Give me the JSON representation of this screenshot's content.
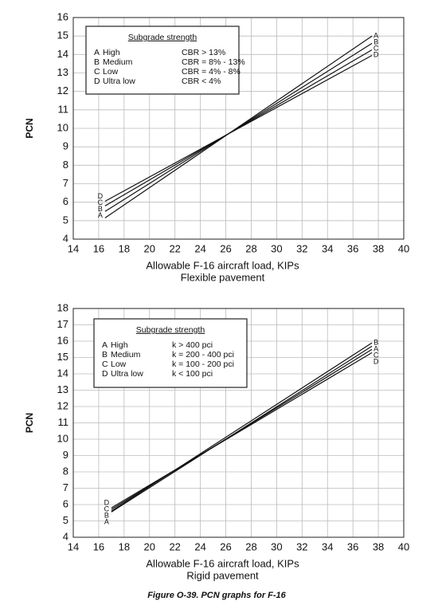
{
  "chart_data": [
    {
      "type": "line",
      "xlabel": "Allowable F-16 aircraft load, KIPs",
      "subtitle": "Flexible pavement",
      "ylabel": "PCN",
      "legend_title": "Subgrade strength",
      "xlim": [
        14,
        40
      ],
      "xticks": [
        14,
        16,
        18,
        20,
        22,
        24,
        26,
        28,
        30,
        32,
        34,
        36,
        38,
        40
      ],
      "ylim": [
        4,
        16
      ],
      "yticks": [
        4,
        5,
        6,
        7,
        8,
        9,
        10,
        11,
        12,
        13,
        14,
        15,
        16
      ],
      "grid": true,
      "x": [
        16.5,
        37.5
      ],
      "series": [
        {
          "name": "A",
          "description": "High",
          "criterion": "CBR > 13%",
          "color": "#111",
          "values": [
            5.15,
            15.0
          ]
        },
        {
          "name": "B",
          "description": "Medium",
          "criterion": "CBR = 8% - 13%",
          "color": "#111",
          "values": [
            5.5,
            14.6
          ]
        },
        {
          "name": "C",
          "description": "Low",
          "criterion": "CBR = 4% - 8%",
          "color": "#111",
          "values": [
            5.8,
            14.25
          ]
        },
        {
          "name": "D",
          "description": "Ultra low",
          "criterion": "CBR < 4%",
          "color": "#111",
          "values": [
            6.05,
            13.95
          ]
        }
      ]
    },
    {
      "type": "line",
      "xlabel": "Allowable F-16 aircraft load, KIPs",
      "subtitle": "Rigid pavement",
      "ylabel": "PCN",
      "legend_title": "Subgrade strength",
      "xlim": [
        14,
        40
      ],
      "xticks": [
        14,
        16,
        18,
        20,
        22,
        24,
        26,
        28,
        30,
        32,
        34,
        36,
        38,
        40
      ],
      "ylim": [
        4,
        18
      ],
      "yticks": [
        4,
        5,
        6,
        7,
        8,
        9,
        10,
        11,
        12,
        13,
        14,
        15,
        16,
        17,
        18
      ],
      "grid": true,
      "x": [
        17,
        37.5
      ],
      "series": [
        {
          "name": "A",
          "description": "High",
          "criterion": "k > 400 pci",
          "color": "#111",
          "values": [
            5.55,
            15.7
          ]
        },
        {
          "name": "B",
          "description": "Medium",
          "criterion": "k = 200 - 400 pci",
          "color": "#111",
          "values": [
            5.6,
            15.9
          ]
        },
        {
          "name": "C",
          "description": "Low",
          "criterion": "k = 100 - 200 pci",
          "color": "#111",
          "values": [
            5.7,
            15.5
          ]
        },
        {
          "name": "D",
          "description": "Ultra low",
          "criterion": "k < 100 pci",
          "color": "#111",
          "values": [
            5.8,
            15.3
          ]
        }
      ]
    }
  ],
  "caption": "Figure O-39.  PCN graphs for F-16"
}
